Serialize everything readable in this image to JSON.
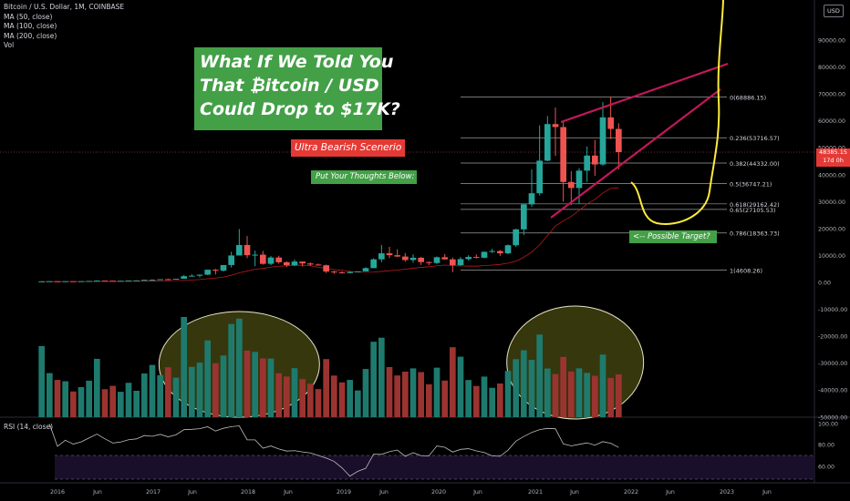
{
  "chart": {
    "symbol_line": "Bitcoin / U.S. Dollar, 1M, COINBASE",
    "indicators": [
      "MA (50, close)",
      "MA (100, close)",
      "MA (200, close)",
      "Vol"
    ],
    "currency_button": "USD",
    "current_price": "48385.15",
    "countdown": "17d 0h"
  },
  "annotations": {
    "title_lines": [
      "What If We Told You",
      "That ₿itcoin / USD",
      "Could Drop to $17K?"
    ],
    "bearish_label": "Ultra Bearish Scenerio",
    "thoughts_label": "Put Your Thoughts Below:",
    "target_label": "<-- Possible Target?"
  },
  "rsi": {
    "label": "RSI (14, close)",
    "axis_ticks": [
      "100.00",
      "80.00",
      "60.00"
    ]
  },
  "colors": {
    "background": "#000000",
    "bull": "#26a69a",
    "bear": "#ef5350",
    "vol_bull": "#1f7a6e",
    "vol_bear": "#9b3430",
    "trendline": "#c2185b",
    "projection": "#ffeb3b",
    "ellipse_fill": "#4a4a12",
    "ellipse_stroke": "#e8e6c8",
    "fib_line": "#9e9e9e",
    "ma_line": "#b71c1c",
    "rsi_line": "#bdbdbd",
    "rsi_band": "#1a0f2a"
  },
  "chart_data": {
    "type": "candlestick",
    "price_axis_ticks": [
      "90000.00",
      "80000.00",
      "70000.00",
      "60000.00",
      "50000.00",
      "40000.00",
      "30000.00",
      "20000.00",
      "10000.00",
      "0.00",
      "-10000.00",
      "-20000.00",
      "-30000.00",
      "-40000.00",
      "-50000.00"
    ],
    "time_axis_labels": [
      "2016",
      "Jun",
      "2017",
      "Jun",
      "2018",
      "Jun",
      "2019",
      "Jun",
      "2020",
      "Jun",
      "2021",
      "Jun",
      "2022",
      "Jun",
      "2023",
      "Jun"
    ],
    "fib_levels": [
      {
        "level": 0,
        "label": "0(68886.15)",
        "price": 68886.15
      },
      {
        "level": 0.236,
        "label": "0.236(53716.57)",
        "price": 53716.57
      },
      {
        "level": 0.382,
        "label": "0.382(44332.00)",
        "price": 44332.0
      },
      {
        "level": 0.5,
        "label": "0.5(36747.21)",
        "price": 36747.21
      },
      {
        "level": 0.618,
        "label": "0.618(29162.42)",
        "price": 29162.42
      },
      {
        "level": 0.65,
        "label": "0.65(27105.53)",
        "price": 27105.53
      },
      {
        "level": 0.786,
        "label": "0.786(18363.73)",
        "price": 18363.73
      },
      {
        "level": 1,
        "label": "1(4608.26)",
        "price": 4608.26
      }
    ],
    "candles": [
      {
        "t": "2015-11",
        "o": 310,
        "h": 500,
        "l": 300,
        "c": 380
      },
      {
        "t": "2015-12",
        "o": 380,
        "h": 470,
        "l": 350,
        "c": 430
      },
      {
        "t": "2016-01",
        "o": 430,
        "h": 460,
        "l": 360,
        "c": 370
      },
      {
        "t": "2016-02",
        "o": 370,
        "h": 440,
        "l": 360,
        "c": 436
      },
      {
        "t": "2016-03",
        "o": 436,
        "h": 440,
        "l": 400,
        "c": 416
      },
      {
        "t": "2016-04",
        "o": 416,
        "h": 470,
        "l": 410,
        "c": 448
      },
      {
        "t": "2016-05",
        "o": 448,
        "h": 540,
        "l": 440,
        "c": 531
      },
      {
        "t": "2016-06",
        "o": 531,
        "h": 780,
        "l": 520,
        "c": 670
      },
      {
        "t": "2016-07",
        "o": 670,
        "h": 680,
        "l": 600,
        "c": 624
      },
      {
        "t": "2016-08",
        "o": 624,
        "h": 630,
        "l": 530,
        "c": 575
      },
      {
        "t": "2016-09",
        "o": 575,
        "h": 620,
        "l": 570,
        "c": 608
      },
      {
        "t": "2016-10",
        "o": 608,
        "h": 720,
        "l": 600,
        "c": 700
      },
      {
        "t": "2016-11",
        "o": 700,
        "h": 750,
        "l": 680,
        "c": 740
      },
      {
        "t": "2016-12",
        "o": 740,
        "h": 970,
        "l": 740,
        "c": 963
      },
      {
        "t": "2017-01",
        "o": 963,
        "h": 1150,
        "l": 750,
        "c": 970
      },
      {
        "t": "2017-02",
        "o": 970,
        "h": 1200,
        "l": 920,
        "c": 1190
      },
      {
        "t": "2017-03",
        "o": 1190,
        "h": 1350,
        "l": 890,
        "c": 1080
      },
      {
        "t": "2017-04",
        "o": 1080,
        "h": 1350,
        "l": 1070,
        "c": 1350
      },
      {
        "t": "2017-05",
        "o": 1350,
        "h": 2760,
        "l": 1330,
        "c": 2300
      },
      {
        "t": "2017-06",
        "o": 2300,
        "h": 3000,
        "l": 2100,
        "c": 2480
      },
      {
        "t": "2017-07",
        "o": 2480,
        "h": 2900,
        "l": 1800,
        "c": 2870
      },
      {
        "t": "2017-08",
        "o": 2870,
        "h": 4750,
        "l": 2700,
        "c": 4700
      },
      {
        "t": "2017-09",
        "o": 4700,
        "h": 5000,
        "l": 2950,
        "c": 4340
      },
      {
        "t": "2017-10",
        "o": 4340,
        "h": 6400,
        "l": 4100,
        "c": 6450
      },
      {
        "t": "2017-11",
        "o": 6450,
        "h": 11400,
        "l": 5500,
        "c": 10000
      },
      {
        "t": "2017-12",
        "o": 10000,
        "h": 19800,
        "l": 10000,
        "c": 13880
      },
      {
        "t": "2018-01",
        "o": 13880,
        "h": 17200,
        "l": 9000,
        "c": 10100
      },
      {
        "t": "2018-02",
        "o": 10100,
        "h": 11800,
        "l": 6000,
        "c": 10300
      },
      {
        "t": "2018-03",
        "o": 10300,
        "h": 11700,
        "l": 6600,
        "c": 6900
      },
      {
        "t": "2018-04",
        "o": 6900,
        "h": 9800,
        "l": 6400,
        "c": 9240
      },
      {
        "t": "2018-05",
        "o": 9240,
        "h": 9900,
        "l": 7000,
        "c": 7490
      },
      {
        "t": "2018-06",
        "o": 7490,
        "h": 7800,
        "l": 5750,
        "c": 6390
      },
      {
        "t": "2018-07",
        "o": 6390,
        "h": 8500,
        "l": 6100,
        "c": 7730
      },
      {
        "t": "2018-08",
        "o": 7730,
        "h": 7760,
        "l": 5880,
        "c": 7030
      },
      {
        "t": "2018-09",
        "o": 7030,
        "h": 7400,
        "l": 6100,
        "c": 6630
      },
      {
        "t": "2018-10",
        "o": 6630,
        "h": 7000,
        "l": 6200,
        "c": 6370
      },
      {
        "t": "2018-11",
        "o": 6370,
        "h": 6600,
        "l": 3500,
        "c": 4030
      },
      {
        "t": "2018-12",
        "o": 4030,
        "h": 4300,
        "l": 3150,
        "c": 3700
      },
      {
        "t": "2019-01",
        "o": 3700,
        "h": 4100,
        "l": 3350,
        "c": 3440
      },
      {
        "t": "2019-02",
        "o": 3440,
        "h": 4200,
        "l": 3400,
        "c": 3850
      },
      {
        "t": "2019-03",
        "o": 3850,
        "h": 4100,
        "l": 3700,
        "c": 4100
      },
      {
        "t": "2019-04",
        "o": 4100,
        "h": 5600,
        "l": 4100,
        "c": 5300
      },
      {
        "t": "2019-05",
        "o": 5300,
        "h": 9000,
        "l": 5300,
        "c": 8560
      },
      {
        "t": "2019-06",
        "o": 8560,
        "h": 13900,
        "l": 7500,
        "c": 10800
      },
      {
        "t": "2019-07",
        "o": 10800,
        "h": 13200,
        "l": 9000,
        "c": 10100
      },
      {
        "t": "2019-08",
        "o": 10100,
        "h": 12300,
        "l": 9400,
        "c": 9600
      },
      {
        "t": "2019-09",
        "o": 9600,
        "h": 10900,
        "l": 7700,
        "c": 8300
      },
      {
        "t": "2019-10",
        "o": 8300,
        "h": 10400,
        "l": 7300,
        "c": 9150
      },
      {
        "t": "2019-11",
        "o": 9150,
        "h": 9500,
        "l": 6500,
        "c": 7550
      },
      {
        "t": "2019-12",
        "o": 7550,
        "h": 7750,
        "l": 6400,
        "c": 7200
      },
      {
        "t": "2020-01",
        "o": 7200,
        "h": 9600,
        "l": 6850,
        "c": 9350
      },
      {
        "t": "2020-02",
        "o": 9350,
        "h": 10500,
        "l": 8400,
        "c": 8550
      },
      {
        "t": "2020-03",
        "o": 8550,
        "h": 9200,
        "l": 3800,
        "c": 6400
      },
      {
        "t": "2020-04",
        "o": 6400,
        "h": 9450,
        "l": 6150,
        "c": 8650
      },
      {
        "t": "2020-05",
        "o": 8650,
        "h": 10100,
        "l": 8100,
        "c": 9450
      },
      {
        "t": "2020-06",
        "o": 9450,
        "h": 10400,
        "l": 8900,
        "c": 9150
      },
      {
        "t": "2020-07",
        "o": 9150,
        "h": 11450,
        "l": 8950,
        "c": 11350
      },
      {
        "t": "2020-08",
        "o": 11350,
        "h": 12450,
        "l": 10900,
        "c": 11650
      },
      {
        "t": "2020-09",
        "o": 11650,
        "h": 12050,
        "l": 9850,
        "c": 10800
      },
      {
        "t": "2020-10",
        "o": 10800,
        "h": 14100,
        "l": 10400,
        "c": 13800
      },
      {
        "t": "2020-11",
        "o": 13800,
        "h": 19900,
        "l": 13200,
        "c": 19700
      },
      {
        "t": "2020-12",
        "o": 19700,
        "h": 29300,
        "l": 17600,
        "c": 28990
      },
      {
        "t": "2021-01",
        "o": 28990,
        "h": 41950,
        "l": 28100,
        "c": 33100
      },
      {
        "t": "2021-02",
        "o": 33100,
        "h": 58300,
        "l": 32300,
        "c": 45200
      },
      {
        "t": "2021-03",
        "o": 45200,
        "h": 61800,
        "l": 45000,
        "c": 58800
      },
      {
        "t": "2021-04",
        "o": 58800,
        "h": 64900,
        "l": 47000,
        "c": 57700
      },
      {
        "t": "2021-05",
        "o": 57700,
        "h": 59600,
        "l": 30000,
        "c": 37300
      },
      {
        "t": "2021-06",
        "o": 37300,
        "h": 41300,
        "l": 28800,
        "c": 35050
      },
      {
        "t": "2021-07",
        "o": 35050,
        "h": 42400,
        "l": 29300,
        "c": 41500
      },
      {
        "t": "2021-08",
        "o": 41500,
        "h": 50500,
        "l": 37300,
        "c": 47100
      },
      {
        "t": "2021-09",
        "o": 47100,
        "h": 52900,
        "l": 39600,
        "c": 43800
      },
      {
        "t": "2021-10",
        "o": 43800,
        "h": 66999,
        "l": 43300,
        "c": 61300
      },
      {
        "t": "2021-11",
        "o": 61300,
        "h": 69000,
        "l": 53250,
        "c": 57000
      },
      {
        "t": "2021-12",
        "o": 57000,
        "h": 59100,
        "l": 42000,
        "c": 48385
      }
    ],
    "volume_ellipses": [
      {
        "from": "2017-03",
        "to": "2018-09",
        "label": ""
      },
      {
        "from": "2020-11",
        "to": "2022-02",
        "label": ""
      }
    ]
  }
}
